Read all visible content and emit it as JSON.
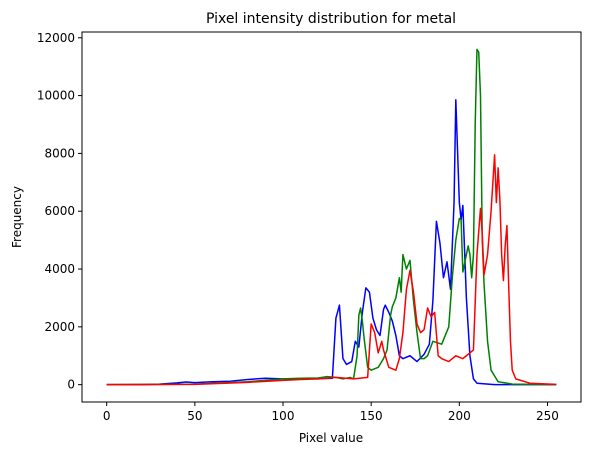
{
  "chart_data": {
    "type": "line",
    "title": "Pixel intensity distribution for metal",
    "xlabel": "Pixel value",
    "ylabel": "Frequency",
    "xlim": [
      -14,
      269
    ],
    "ylim": [
      -600,
      12200
    ],
    "xticks": [
      0,
      50,
      100,
      150,
      200,
      250
    ],
    "yticks": [
      0,
      2000,
      4000,
      6000,
      8000,
      10000,
      12000
    ],
    "grid": false,
    "series": [
      {
        "color": "#0000ff",
        "points": [
          [
            0,
            0
          ],
          [
            20,
            0
          ],
          [
            30,
            20
          ],
          [
            40,
            60
          ],
          [
            45,
            90
          ],
          [
            50,
            70
          ],
          [
            60,
            100
          ],
          [
            70,
            120
          ],
          [
            80,
            180
          ],
          [
            90,
            220
          ],
          [
            100,
            200
          ],
          [
            110,
            210
          ],
          [
            120,
            200
          ],
          [
            128,
            220
          ],
          [
            130,
            2300
          ],
          [
            132,
            2750
          ],
          [
            134,
            900
          ],
          [
            136,
            700
          ],
          [
            139,
            800
          ],
          [
            141,
            1500
          ],
          [
            143,
            1300
          ],
          [
            145,
            2500
          ],
          [
            147,
            3350
          ],
          [
            149,
            3200
          ],
          [
            151,
            2300
          ],
          [
            153,
            1900
          ],
          [
            155,
            1700
          ],
          [
            157,
            2600
          ],
          [
            158,
            2750
          ],
          [
            160,
            2500
          ],
          [
            162,
            2200
          ],
          [
            164,
            1700
          ],
          [
            166,
            1000
          ],
          [
            168,
            900
          ],
          [
            172,
            1000
          ],
          [
            176,
            800
          ],
          [
            180,
            1050
          ],
          [
            183,
            1400
          ],
          [
            185,
            2900
          ],
          [
            187,
            5650
          ],
          [
            189,
            4900
          ],
          [
            191,
            3700
          ],
          [
            193,
            4250
          ],
          [
            195,
            3300
          ],
          [
            197,
            6300
          ],
          [
            198,
            9850
          ],
          [
            200,
            6300
          ],
          [
            201,
            5700
          ],
          [
            202,
            6200
          ],
          [
            204,
            3000
          ],
          [
            206,
            1000
          ],
          [
            208,
            200
          ],
          [
            210,
            50
          ],
          [
            220,
            0
          ],
          [
            255,
            0
          ]
        ]
      },
      {
        "color": "#008000",
        "points": [
          [
            0,
            0
          ],
          [
            50,
            20
          ],
          [
            80,
            100
          ],
          [
            100,
            200
          ],
          [
            110,
            220
          ],
          [
            120,
            230
          ],
          [
            125,
            280
          ],
          [
            130,
            250
          ],
          [
            134,
            200
          ],
          [
            138,
            250
          ],
          [
            140,
            200
          ],
          [
            142,
            1000
          ],
          [
            143,
            2400
          ],
          [
            144,
            2650
          ],
          [
            145,
            2200
          ],
          [
            146,
            1600
          ],
          [
            148,
            600
          ],
          [
            150,
            500
          ],
          [
            154,
            600
          ],
          [
            157,
            900
          ],
          [
            159,
            1200
          ],
          [
            161,
            2400
          ],
          [
            162,
            2700
          ],
          [
            164,
            3000
          ],
          [
            166,
            3700
          ],
          [
            167,
            3200
          ],
          [
            168,
            4500
          ],
          [
            170,
            4000
          ],
          [
            172,
            4300
          ],
          [
            174,
            2900
          ],
          [
            176,
            1800
          ],
          [
            178,
            900
          ],
          [
            180,
            900
          ],
          [
            182,
            1000
          ],
          [
            185,
            1500
          ],
          [
            190,
            1400
          ],
          [
            194,
            2000
          ],
          [
            196,
            3700
          ],
          [
            198,
            5000
          ],
          [
            200,
            5750
          ],
          [
            201,
            5700
          ],
          [
            202,
            3900
          ],
          [
            204,
            4500
          ],
          [
            205,
            4800
          ],
          [
            206,
            4500
          ],
          [
            207,
            3700
          ],
          [
            208,
            4500
          ],
          [
            209,
            9000
          ],
          [
            210,
            11600
          ],
          [
            211,
            11500
          ],
          [
            212,
            10000
          ],
          [
            213,
            5000
          ],
          [
            214,
            3500
          ],
          [
            216,
            1500
          ],
          [
            218,
            500
          ],
          [
            222,
            100
          ],
          [
            230,
            20
          ],
          [
            255,
            0
          ]
        ]
      },
      {
        "color": "#ff0000",
        "points": [
          [
            0,
            0
          ],
          [
            50,
            10
          ],
          [
            80,
            80
          ],
          [
            100,
            150
          ],
          [
            110,
            180
          ],
          [
            120,
            200
          ],
          [
            130,
            250
          ],
          [
            140,
            200
          ],
          [
            148,
            250
          ],
          [
            150,
            2100
          ],
          [
            152,
            1800
          ],
          [
            154,
            1100
          ],
          [
            156,
            1500
          ],
          [
            157,
            1200
          ],
          [
            160,
            600
          ],
          [
            164,
            500
          ],
          [
            166,
            900
          ],
          [
            168,
            1800
          ],
          [
            170,
            3300
          ],
          [
            172,
            3950
          ],
          [
            174,
            3200
          ],
          [
            176,
            2100
          ],
          [
            178,
            1800
          ],
          [
            180,
            1900
          ],
          [
            182,
            2650
          ],
          [
            184,
            2350
          ],
          [
            186,
            2500
          ],
          [
            188,
            1000
          ],
          [
            190,
            900
          ],
          [
            194,
            800
          ],
          [
            198,
            1000
          ],
          [
            202,
            900
          ],
          [
            206,
            1100
          ],
          [
            208,
            1200
          ],
          [
            210,
            4500
          ],
          [
            212,
            6100
          ],
          [
            213,
            5200
          ],
          [
            214,
            3800
          ],
          [
            216,
            4500
          ],
          [
            218,
            6000
          ],
          [
            220,
            7950
          ],
          [
            221,
            6300
          ],
          [
            222,
            7500
          ],
          [
            223,
            6400
          ],
          [
            224,
            4500
          ],
          [
            225,
            3600
          ],
          [
            226,
            4800
          ],
          [
            227,
            5500
          ],
          [
            228,
            3400
          ],
          [
            229,
            1500
          ],
          [
            230,
            500
          ],
          [
            232,
            200
          ],
          [
            240,
            50
          ],
          [
            255,
            10
          ]
        ]
      }
    ]
  }
}
